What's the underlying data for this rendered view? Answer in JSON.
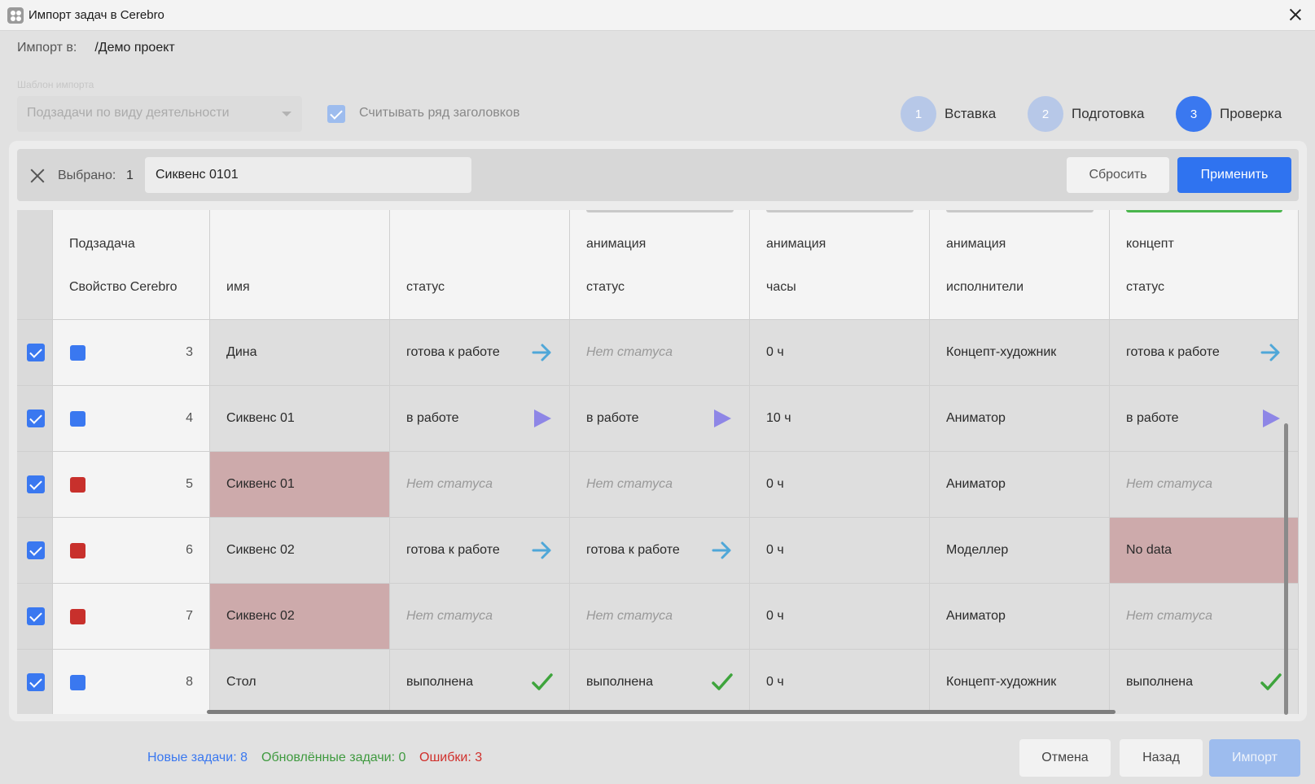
{
  "window": {
    "title": "Импорт задач в Cerebro"
  },
  "import_to": {
    "label": "Импорт в:",
    "path": "/Демо проект"
  },
  "template": {
    "label": "Шаблон импорта",
    "value": "Подзадачи по виду деятельности"
  },
  "read_headers": {
    "label": "Считывать ряд заголовков",
    "checked": true
  },
  "steps": [
    {
      "number": "1",
      "label": "Вставка",
      "state": "done"
    },
    {
      "number": "2",
      "label": "Подготовка",
      "state": "done"
    },
    {
      "number": "3",
      "label": "Проверка",
      "state": "active"
    }
  ],
  "selection": {
    "label": "Выбрано:",
    "count": "1",
    "value": "Сиквенс 0101",
    "reset": "Сбросить",
    "apply": "Применить"
  },
  "columns": [
    {
      "top": "Подзадача",
      "bottom": "Свойство Cerebro",
      "bar": "none"
    },
    {
      "top": "",
      "bottom": "имя",
      "bar": "none"
    },
    {
      "top": "",
      "bottom": "статус",
      "bar": "none"
    },
    {
      "top": "анимация",
      "bottom": "статус",
      "bar": "gray"
    },
    {
      "top": "анимация",
      "bottom": "часы",
      "bar": "gray"
    },
    {
      "top": "анимация",
      "bottom": "исполнители",
      "bar": "gray"
    },
    {
      "top": "концепт",
      "bottom": "статус",
      "bar": "green"
    }
  ],
  "rows": [
    {
      "checked": true,
      "color": "blue",
      "num": "3",
      "name": "Дина",
      "name_error": false,
      "status": "готова к работе",
      "status_icon": "arrow-right-icon",
      "anim_status": "Нет статуса",
      "anim_icon": "none",
      "hours": "0 ч",
      "performer": "Концепт-художник",
      "concept_status": "готова к работе",
      "concept_icon": "arrow-right-icon",
      "concept_error": false
    },
    {
      "checked": true,
      "color": "blue",
      "num": "4",
      "name": "Сиквенс 01",
      "name_error": false,
      "status": "в работе",
      "status_icon": "play-icon",
      "anim_status": "в работе",
      "anim_icon": "play-icon",
      "hours": "10 ч",
      "performer": "Аниматор",
      "concept_status": "в работе",
      "concept_icon": "play-icon",
      "concept_error": false
    },
    {
      "checked": true,
      "color": "red",
      "num": "5",
      "name": "Сиквенс 01",
      "name_error": true,
      "status": "Нет статуса",
      "status_icon": "none",
      "anim_status": "Нет статуса",
      "anim_icon": "none",
      "hours": "0 ч",
      "performer": "Аниматор",
      "concept_status": "Нет статуса",
      "concept_icon": "none",
      "concept_error": false
    },
    {
      "checked": true,
      "color": "red",
      "num": "6",
      "name": "Сиквенс 02",
      "name_error": false,
      "status": "готова к работе",
      "status_icon": "arrow-right-icon",
      "anim_status": "готова к работе",
      "anim_icon": "arrow-right-icon",
      "hours": "0 ч",
      "performer": "Моделлер",
      "concept_status": "No data",
      "concept_icon": "none",
      "concept_error": true
    },
    {
      "checked": true,
      "color": "red",
      "num": "7",
      "name": "Сиквенс 02",
      "name_error": true,
      "status": "Нет статуса",
      "status_icon": "none",
      "anim_status": "Нет статуса",
      "anim_icon": "none",
      "hours": "0 ч",
      "performer": "Аниматор",
      "concept_status": "Нет статуса",
      "concept_icon": "none",
      "concept_error": false
    },
    {
      "checked": true,
      "color": "blue",
      "num": "8",
      "name": "Стол",
      "name_error": false,
      "status": "выполнена",
      "status_icon": "check-icon",
      "anim_status": "выполнена",
      "anim_icon": "check-icon",
      "hours": "0 ч",
      "performer": "Концепт-художник",
      "concept_status": "выполнена",
      "concept_icon": "check-icon",
      "concept_error": false
    }
  ],
  "stats": {
    "new": "Новые задачи: 8",
    "new_color": "#3a78f0",
    "updated": "Обновлённые задачи: 0",
    "updated_color": "#3f9a3f",
    "errors": "Ошибки: 3",
    "errors_color": "#d0302c"
  },
  "buttons": {
    "cancel": "Отмена",
    "back": "Назад",
    "import": "Импорт"
  }
}
